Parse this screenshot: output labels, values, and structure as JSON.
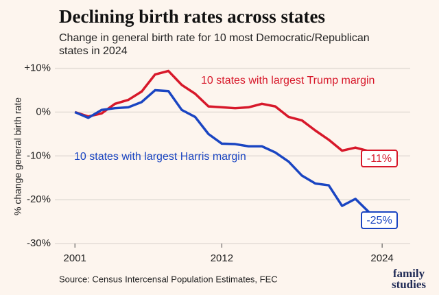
{
  "chart_data": {
    "type": "line",
    "title": "Declining birth rates across states",
    "subtitle": [
      "Change in general birth rate for 10 most Democratic/Republican",
      "states in 2024"
    ],
    "y_label": "% change general birth rate",
    "x": [
      2001,
      2002,
      2003,
      2004,
      2005,
      2006,
      2007,
      2008,
      2009,
      2010,
      2011,
      2012,
      2013,
      2014,
      2015,
      2016,
      2017,
      2018,
      2019,
      2020,
      2021,
      2022,
      2023
    ],
    "series": [
      {
        "name": "10 states with largest Trump margin",
        "color": "#d7182a",
        "values": [
          0,
          -1,
          -0.3,
          1.9,
          2.8,
          4.7,
          8.6,
          9.4,
          6.2,
          4.2,
          1.3,
          1.1,
          0.9,
          1.1,
          1.9,
          1.3,
          -1.1,
          -1.9,
          -4.2,
          -6.3,
          -8.8,
          -8.1,
          -8.9
        ],
        "end_label": "-11%"
      },
      {
        "name": "10 states with largest Harris margin",
        "color": "#1a45c2",
        "values": [
          0,
          -1.3,
          0.5,
          0.9,
          1.1,
          2.3,
          5,
          4.8,
          0.5,
          -1.1,
          -5,
          -7.2,
          -7.3,
          -7.8,
          -7.8,
          -9.2,
          -11.3,
          -14.5,
          -16.3,
          -16.7,
          -21.4,
          -19.8,
          -22.8
        ],
        "end_label": "-25%"
      }
    ],
    "xlim": [
      1999.5,
      2026.1
    ],
    "xticks": [
      2001,
      2012,
      2024
    ],
    "ylim": [
      -30,
      11.5
    ],
    "yticks": [
      {
        "value": 10,
        "label": "+10%"
      },
      {
        "value": 0,
        "label": "0%"
      },
      {
        "value": -10,
        "label": "-10%"
      },
      {
        "value": -20,
        "label": "-20%"
      },
      {
        "value": -30,
        "label": "-30%"
      }
    ],
    "grid": true,
    "source": "Source: Census Intercensal Population Estimates, FEC",
    "logo": [
      "family",
      "studies"
    ]
  }
}
